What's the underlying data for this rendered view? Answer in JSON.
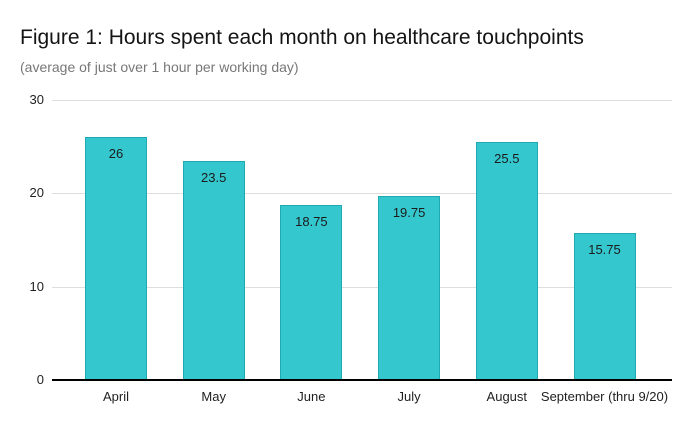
{
  "header": {
    "title": "Figure 1: Hours spent each month on healthcare touchpoints",
    "subtitle": "(average of just over 1 hour per working day)"
  },
  "chart_data": {
    "type": "bar",
    "title": "Figure 1: Hours spent each month on healthcare touchpoints",
    "subtitle": "(average of just over 1 hour per working day)",
    "categories": [
      "April",
      "May",
      "June",
      "July",
      "August",
      "September (thru 9/20)"
    ],
    "values": [
      26,
      23.5,
      18.75,
      19.75,
      25.5,
      15.75
    ],
    "value_labels": [
      "26",
      "23.5",
      "18.75",
      "19.75",
      "25.5",
      "15.75"
    ],
    "xlabel": "",
    "ylabel": "",
    "ylim": [
      0,
      30
    ],
    "yticks": [
      0,
      10,
      20,
      30
    ],
    "grid": true,
    "legend_position": "none",
    "value_labels_position": "inside-top",
    "colors": {
      "background": "#ffffff",
      "bar_fill": "#35c7ce",
      "bar_border": "#20a9b1",
      "gridline": "#dedede",
      "axis_baseline": "#000000",
      "title_text": "#141414",
      "subtitle_text": "#777777",
      "axis_label_text": "#1f1f1f",
      "value_label_text": "#1b1b1b"
    }
  }
}
